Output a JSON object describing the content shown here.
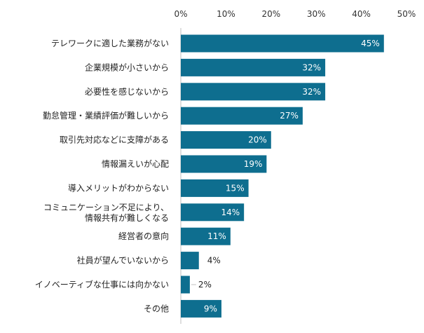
{
  "chart_data": {
    "type": "bar",
    "orientation": "horizontal",
    "categories": [
      "テレワークに適した業務がない",
      "企業規模が小さいから",
      "必要性を感じないから",
      "勤怠管理・業績評価が難しいから",
      "取引先対応などに支障がある",
      "情報漏えいが心配",
      "導入メリットがわからない",
      "コミュニケーション不足により、\n情報共有が難しくなる",
      "経営者の意向",
      "社員が望んでいないから",
      "イノベーティブな仕事には向かない",
      "その他"
    ],
    "values": [
      45,
      32,
      32,
      27,
      20,
      19,
      15,
      14,
      11,
      4,
      2,
      9
    ],
    "value_labels": [
      "45%",
      "32%",
      "32%",
      "27%",
      "20%",
      "19%",
      "15%",
      "14%",
      "11%",
      "4%",
      "2%",
      "9%"
    ],
    "xlim": [
      0,
      50
    ],
    "x_ticks": [
      "0%",
      "10%",
      "20%",
      "30%",
      "40%",
      "50%"
    ],
    "x_axis_position": "top",
    "grid": false,
    "bar_color": "#0E6E8F",
    "title": "",
    "xlabel": "",
    "ylabel": ""
  }
}
